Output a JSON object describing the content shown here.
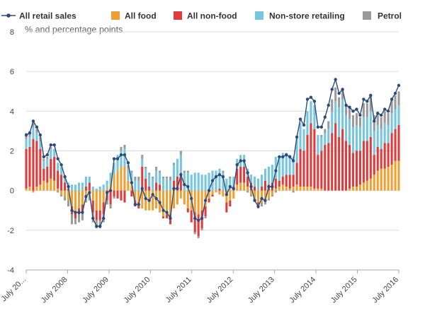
{
  "chart_data": {
    "type": "bar",
    "stacked": true,
    "ylabel": "% and percentage points",
    "xlabel": "",
    "ylim": [
      -4,
      8
    ],
    "yticks": [
      -4,
      -2,
      0,
      2,
      4,
      6,
      8
    ],
    "grid": true,
    "legend_position": "top",
    "x_tick_labels": [
      "July 20...",
      "July 2008",
      "July 2009",
      "July 2010",
      "July 2011",
      "July 2012",
      "July 2013",
      "July 2014",
      "July 2015",
      "July 2016"
    ],
    "colors": {
      "line": "#2a4b7c",
      "food": "#f0a030",
      "nonfood": "#e03b3b",
      "nonstore": "#76c6de",
      "petrol": "#9a9a9a",
      "grid": "#dcdcdc",
      "axis": "#aaaaaa"
    },
    "series": [
      {
        "name": "All retail sales",
        "type": "line",
        "values": [
          2.8,
          2.9,
          3.5,
          3.2,
          2.8,
          1.7,
          1.8,
          2.3,
          2.3,
          1.6,
          1.3,
          0.7,
          0.2,
          -1.0,
          -1.1,
          -1.1,
          -1.1,
          -0.3,
          -0.1,
          -1.4,
          -1.8,
          -1.8,
          -1.4,
          -0.1,
          0.0,
          1.6,
          1.6,
          1.8,
          1.8,
          1.4,
          0.4,
          -0.7,
          -0.7,
          0.1,
          -0.4,
          -0.5,
          -0.2,
          -0.4,
          -0.6,
          -1.0,
          -1.1,
          -1.4,
          0.1,
          0.1,
          0.8,
          0.3,
          0.2,
          -0.4,
          -1.4,
          -1.5,
          -1.4,
          -0.5,
          0.0,
          0.5,
          0.7,
          0.8,
          0.7,
          -0.2,
          0.2,
          0.1,
          1.3,
          1.5,
          1.5,
          0.9,
          0.2,
          -0.5,
          -0.8,
          -0.4,
          -0.5,
          0.2,
          0.2,
          1.0,
          1.7,
          1.7,
          1.8,
          1.7,
          1.5,
          2.7,
          3.6,
          3.3,
          4.6,
          4.7,
          4.5,
          3.2,
          3.2,
          3.7,
          4.3,
          5.1,
          5.6,
          4.9,
          5.1,
          4.3,
          4.2,
          4.0,
          4.1,
          3.8,
          4.6,
          4.5,
          4.8,
          3.5,
          3.9,
          3.8,
          4.1,
          4.0,
          4.6,
          4.9,
          5.3
        ]
      },
      {
        "name": "All food",
        "values": [
          0.1,
          0.2,
          -0.1,
          0.2,
          0.3,
          0.5,
          0.4,
          0.6,
          0.5,
          0.1,
          -0.2,
          -0.3,
          -0.5,
          -0.8,
          -1.1,
          -0.9,
          -0.7,
          -0.3,
          -0.2,
          -0.5,
          -1.0,
          -1.0,
          -0.6,
          0.1,
          0.3,
          0.8,
          1.0,
          1.2,
          1.2,
          0.5,
          0.3,
          -0.5,
          -0.6,
          -0.9,
          -1.0,
          -1.0,
          -1.0,
          -0.9,
          -1.1,
          -1.3,
          -1.2,
          -1.2,
          -0.9,
          -0.7,
          -0.4,
          -0.7,
          -0.9,
          -1.0,
          -1.1,
          -1.2,
          -1.0,
          -0.8,
          -0.4,
          -0.2,
          -0.1,
          -0.2,
          -0.3,
          -0.6,
          -0.5,
          -0.4,
          0.3,
          0.4,
          0.4,
          0.2,
          -0.2,
          -0.4,
          -0.6,
          -0.6,
          -0.5,
          -0.4,
          -0.2,
          0.1,
          0.2,
          0.3,
          0.2,
          0.1,
          0.2,
          0.3,
          0.2,
          0.2,
          0.2,
          0.2,
          0.1,
          0.1,
          0.1,
          0.0,
          0.0,
          0.0,
          0.0,
          0.0,
          0.0,
          0.0,
          0.1,
          0.2,
          0.2,
          0.3,
          0.4,
          0.5,
          0.6,
          0.8,
          1.0,
          1.1,
          1.1,
          1.2,
          1.3,
          1.5,
          1.5
        ]
      },
      {
        "name": "All non-food",
        "values": [
          2.0,
          2.0,
          2.6,
          2.3,
          1.8,
          0.6,
          0.8,
          1.0,
          1.2,
          0.9,
          0.8,
          0.4,
          0.1,
          -0.4,
          -0.3,
          -0.3,
          -0.4,
          0.2,
          0.4,
          -0.6,
          -0.5,
          -0.5,
          -0.6,
          -0.5,
          -0.7,
          -0.3,
          -0.4,
          -0.5,
          -0.6,
          0.0,
          -0.3,
          -0.3,
          -0.3,
          1.2,
          0.6,
          0.2,
          0.0,
          0.4,
          0.3,
          -0.1,
          -0.2,
          -0.5,
          0.5,
          0.7,
          0.9,
          0.0,
          -0.2,
          -0.6,
          -1.0,
          -1.1,
          -0.9,
          -0.5,
          -0.2,
          -0.1,
          0.0,
          0.1,
          0.0,
          -0.5,
          -0.3,
          0.2,
          0.8,
          0.8,
          0.8,
          0.5,
          0.4,
          0.2,
          -0.1,
          0.2,
          0.5,
          0.3,
          0.4,
          0.5,
          0.3,
          0.4,
          0.6,
          0.7,
          0.6,
          1.1,
          1.9,
          1.8,
          2.6,
          3.2,
          3.0,
          1.7,
          1.9,
          2.3,
          2.4,
          2.9,
          3.4,
          2.7,
          3.1,
          2.5,
          2.2,
          1.7,
          1.8,
          1.7,
          2.1,
          2.0,
          2.1,
          1.0,
          1.2,
          1.0,
          1.3,
          1.2,
          1.6,
          1.6,
          1.8
        ]
      },
      {
        "name": "Non-store retailing",
        "values": [
          0.5,
          0.5,
          0.6,
          0.4,
          0.4,
          0.4,
          0.4,
          0.5,
          0.4,
          0.4,
          0.4,
          0.3,
          0.3,
          0.3,
          0.3,
          0.4,
          0.4,
          0.5,
          0.3,
          0.2,
          0.1,
          0.2,
          0.3,
          0.4,
          0.6,
          0.6,
          0.8,
          0.8,
          0.9,
          0.6,
          0.6,
          0.5,
          0.5,
          0.4,
          0.5,
          0.6,
          0.6,
          0.6,
          0.6,
          0.6,
          0.6,
          0.5,
          0.8,
          0.9,
          0.9,
          0.9,
          0.9,
          0.8,
          0.9,
          0.9,
          0.8,
          0.8,
          0.9,
          1.0,
          1.0,
          1.0,
          0.9,
          0.6,
          0.6,
          0.5,
          0.5,
          0.6,
          0.6,
          0.4,
          0.4,
          0.5,
          0.6,
          0.6,
          0.6,
          0.9,
          0.9,
          1.1,
          1.2,
          1.2,
          1.1,
          1.0,
          0.9,
          1.3,
          1.3,
          1.1,
          1.2,
          1.1,
          1.2,
          1.0,
          0.7,
          0.6,
          0.7,
          1.1,
          1.1,
          1.5,
          1.5,
          1.3,
          1.3,
          1.3,
          1.3,
          1.2,
          1.2,
          1.2,
          1.3,
          1.2,
          1.1,
          1.0,
          1.0,
          0.9,
          1.0,
          1.0,
          1.0
        ]
      },
      {
        "name": "Petrol",
        "values": [
          0.3,
          0.3,
          0.3,
          0.2,
          0.2,
          0.1,
          0.1,
          0.1,
          0.0,
          -0.1,
          -0.1,
          -0.2,
          -0.3,
          -0.5,
          -0.3,
          -0.4,
          -0.4,
          -0.3,
          -0.3,
          -0.5,
          -0.4,
          -0.4,
          -0.4,
          -0.2,
          -0.2,
          -0.1,
          0.0,
          0.2,
          0.2,
          0.2,
          0.1,
          0.2,
          0.2,
          0.2,
          0.1,
          0.1,
          0.1,
          0.2,
          0.1,
          0.1,
          0.1,
          0.2,
          0.1,
          0.0,
          0.2,
          0.1,
          0.1,
          0.0,
          -0.1,
          -0.1,
          -0.1,
          -0.1,
          0.0,
          0.0,
          0.0,
          0.0,
          0.1,
          0.0,
          0.1,
          0.0,
          0.0,
          0.0,
          0.0,
          -0.1,
          -0.1,
          -0.1,
          -0.2,
          -0.2,
          -0.2,
          -0.1,
          -0.1,
          -0.1,
          0.0,
          0.0,
          0.0,
          0.0,
          -0.1,
          0.0,
          0.0,
          0.0,
          0.0,
          0.0,
          0.0,
          0.0,
          0.1,
          0.2,
          0.4,
          0.6,
          0.7,
          0.5,
          0.5,
          0.5,
          0.6,
          0.6,
          0.6,
          0.5,
          0.7,
          0.7,
          0.8,
          0.8,
          0.6,
          0.6,
          0.6,
          0.6,
          0.7,
          0.7,
          0.7
        ]
      }
    ]
  }
}
